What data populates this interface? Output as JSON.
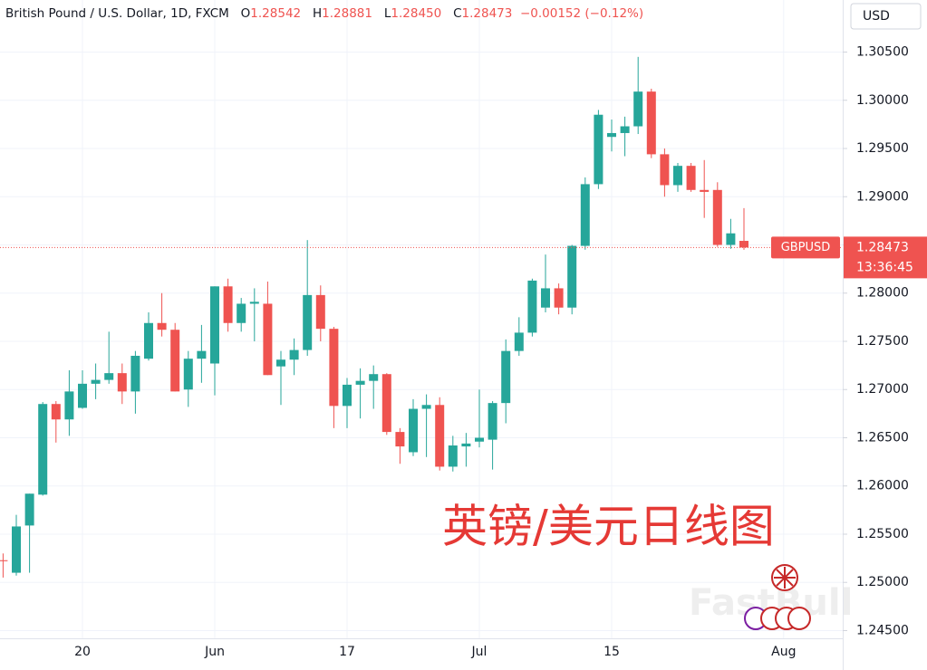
{
  "chart_data": {
    "type": "candlestick",
    "title": "British Pound / U.S. Dollar, 1D, FXCM",
    "ohlc_legend": [
      {
        "label": "O",
        "value": "1.28542"
      },
      {
        "label": "H",
        "value": "1.28881"
      },
      {
        "label": "L",
        "value": "1.28450"
      },
      {
        "label": "C",
        "value": "1.28473"
      }
    ],
    "change": "−0.00152",
    "change_pct": "(−0.12%)",
    "currency": "USD",
    "symbol": "GBPUSD",
    "last_price": 1.28473,
    "countdown": "13:36:45",
    "annotation": "英镑/美元日线图",
    "watermark": "FastBull",
    "up_color": "#26a69a",
    "down_color": "#ef5350",
    "grid": true,
    "categories": [
      null,
      null,
      null,
      null,
      null,
      null,
      "20",
      null,
      null,
      null,
      null,
      null,
      null,
      null,
      null,
      null,
      "Jun",
      null,
      null,
      null,
      null,
      null,
      null,
      null,
      null,
      null,
      "17",
      null,
      null,
      null,
      null,
      null,
      null,
      null,
      null,
      null,
      "Jul",
      null,
      null,
      null,
      null,
      null,
      null,
      null,
      null,
      null,
      "15",
      null,
      null,
      null,
      null,
      null,
      null,
      null,
      null,
      null,
      null,
      null,
      null,
      "Aug"
    ],
    "series": {
      "open": [
        1.2523,
        1.251,
        1.2559,
        1.2591,
        1.2685,
        1.2669,
        1.2681,
        1.2706,
        1.271,
        1.2717,
        1.2698,
        1.2732,
        1.2769,
        1.2762,
        1.27,
        1.2732,
        1.2727,
        1.2807,
        1.2769,
        1.2789,
        1.2789,
        1.2724,
        1.2731,
        1.2741,
        1.2798,
        1.2763,
        1.2683,
        1.2705,
        1.2709,
        1.2716,
        1.2656,
        1.2635,
        1.268,
        1.2684,
        1.262,
        1.2641,
        1.2646,
        1.2648,
        1.2686,
        1.274,
        1.2759,
        1.2785,
        1.2805,
        1.2785,
        1.2849,
        1.2913,
        1.2962,
        1.2966,
        1.2973,
        1.3009,
        1.2944,
        1.2912,
        1.2932,
        1.2907,
        1.2907,
        1.285,
        1.28542,
        null,
        null,
        null
      ],
      "high": [
        1.253,
        1.257,
        1.2592,
        1.2687,
        1.2688,
        1.272,
        1.272,
        1.2727,
        1.276,
        1.2727,
        1.274,
        1.278,
        1.28,
        1.2769,
        1.274,
        1.2767,
        1.2807,
        1.2815,
        1.2795,
        1.2805,
        1.2812,
        1.274,
        1.2753,
        1.2855,
        1.2808,
        1.2765,
        1.2712,
        1.2722,
        1.2725,
        1.2717,
        1.266,
        1.269,
        1.2695,
        1.2692,
        1.2652,
        1.2655,
        1.27,
        1.2688,
        1.2752,
        1.2775,
        1.2815,
        1.284,
        1.281,
        1.285,
        1.292,
        1.299,
        1.298,
        1.2983,
        1.3045,
        1.3012,
        1.295,
        1.2935,
        1.2935,
        1.2938,
        1.2915,
        1.2877,
        1.28881,
        null,
        null,
        null
      ],
      "low": [
        1.2505,
        1.2507,
        1.251,
        1.259,
        1.2645,
        1.2652,
        1.268,
        1.269,
        1.2706,
        1.2685,
        1.2675,
        1.273,
        1.2755,
        1.2698,
        1.2682,
        1.2707,
        1.2694,
        1.276,
        1.276,
        1.275,
        1.2715,
        1.2684,
        1.2715,
        1.2735,
        1.275,
        1.266,
        1.266,
        1.267,
        1.268,
        1.2653,
        1.2623,
        1.2631,
        1.263,
        1.2616,
        1.2615,
        1.262,
        1.264,
        1.2617,
        1.2665,
        1.2735,
        1.2755,
        1.278,
        1.2778,
        1.2778,
        1.2845,
        1.2908,
        1.2947,
        1.2942,
        1.2965,
        1.294,
        1.29,
        1.2905,
        1.2905,
        1.2878,
        1.2848,
        1.2846,
        1.2845,
        null,
        null,
        null
      ],
      "close": [
        1.2522,
        1.2558,
        1.2592,
        1.2685,
        1.2669,
        1.2698,
        1.2706,
        1.271,
        1.2717,
        1.2698,
        1.2735,
        1.2769,
        1.2762,
        1.2698,
        1.2732,
        1.274,
        1.2807,
        1.2769,
        1.2789,
        1.2791,
        1.2715,
        1.2731,
        1.2741,
        1.2798,
        1.2763,
        1.2683,
        1.2705,
        1.2709,
        1.2716,
        1.2656,
        1.2641,
        1.268,
        1.2684,
        1.262,
        1.2642,
        1.2644,
        1.265,
        1.2686,
        1.274,
        1.2759,
        1.2813,
        1.2805,
        1.2785,
        1.2849,
        1.2913,
        1.2985,
        1.2966,
        1.2973,
        1.3009,
        1.2944,
        1.2912,
        1.2932,
        1.2907,
        1.2905,
        1.285,
        1.2862,
        1.28473,
        null,
        null,
        null
      ]
    },
    "ylim": [
      1.2442,
      1.3104
    ],
    "yticks": [
      {
        "value": 1.245,
        "label": "1.24500"
      },
      {
        "value": 1.25,
        "label": "1.25000"
      },
      {
        "value": 1.255,
        "label": "1.25500"
      },
      {
        "value": 1.26,
        "label": "1.26000"
      },
      {
        "value": 1.265,
        "label": "1.26500"
      },
      {
        "value": 1.27,
        "label": "1.27000"
      },
      {
        "value": 1.275,
        "label": "1.27500"
      },
      {
        "value": 1.28,
        "label": "1.28000"
      },
      {
        "value": 1.285,
        "label": "1.28500"
      },
      {
        "value": 1.29,
        "label": "1.29000"
      },
      {
        "value": 1.295,
        "label": "1.29500"
      },
      {
        "value": 1.3,
        "label": "1.30000"
      },
      {
        "value": 1.305,
        "label": "1.30500"
      }
    ]
  }
}
